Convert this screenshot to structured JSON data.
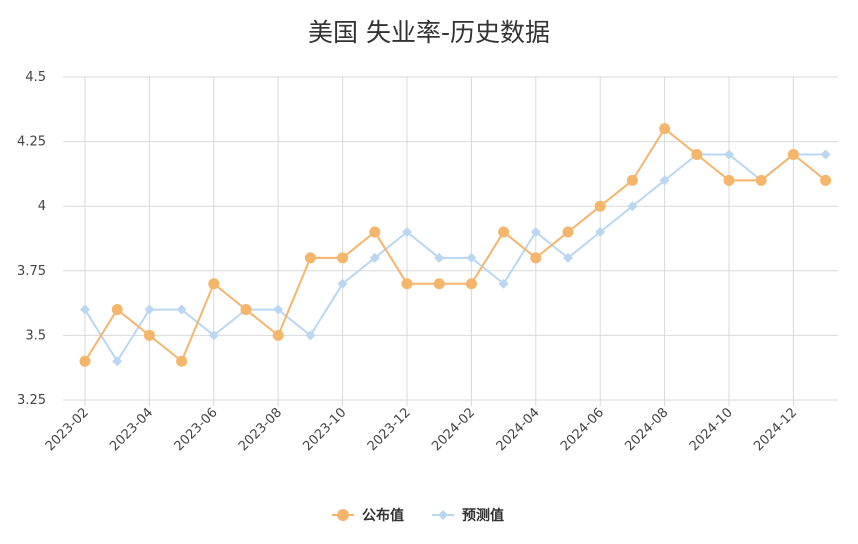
{
  "chart_data": {
    "type": "line",
    "title": "美国 失业率-历史数据",
    "xlabel": "",
    "ylabel": "",
    "x": [
      "2023-02",
      "2023-03",
      "2023-04",
      "2023-05",
      "2023-06",
      "2023-07",
      "2023-08",
      "2023-09",
      "2023-10",
      "2023-11",
      "2023-12",
      "2024-01",
      "2024-02",
      "2024-03",
      "2024-04",
      "2024-05",
      "2024-06",
      "2024-07",
      "2024-08",
      "2024-09",
      "2024-10",
      "2024-11",
      "2024-12",
      "2025-01"
    ],
    "x_tick_labels": [
      "2023-02",
      "2023-04",
      "2023-06",
      "2023-08",
      "2023-10",
      "2023-12",
      "2024-02",
      "2024-04",
      "2024-06",
      "2024-08",
      "2024-10",
      "2024-12"
    ],
    "y_tick_labels": [
      "3.25",
      "3.5",
      "3.75",
      "4",
      "4.25",
      "4.5"
    ],
    "ylim": [
      3.25,
      4.5
    ],
    "grid": true,
    "legend_position": "bottom",
    "series": [
      {
        "name": "公布值",
        "color": "#f5b56b",
        "marker": "circle",
        "values": [
          3.4,
          3.6,
          3.5,
          3.4,
          3.7,
          3.6,
          3.5,
          3.8,
          3.8,
          3.9,
          3.7,
          3.7,
          3.7,
          3.9,
          3.8,
          3.9,
          4.0,
          4.1,
          4.3,
          4.2,
          4.1,
          4.1,
          4.2,
          4.1
        ]
      },
      {
        "name": "预测值",
        "color": "#b9d7f0",
        "marker": "diamond",
        "values": [
          3.6,
          3.4,
          3.6,
          3.6,
          3.5,
          3.6,
          3.6,
          3.5,
          3.7,
          3.8,
          3.9,
          3.8,
          3.8,
          3.7,
          3.9,
          3.8,
          3.9,
          4.0,
          4.1,
          4.2,
          4.2,
          4.1,
          4.2,
          4.2
        ]
      }
    ]
  }
}
